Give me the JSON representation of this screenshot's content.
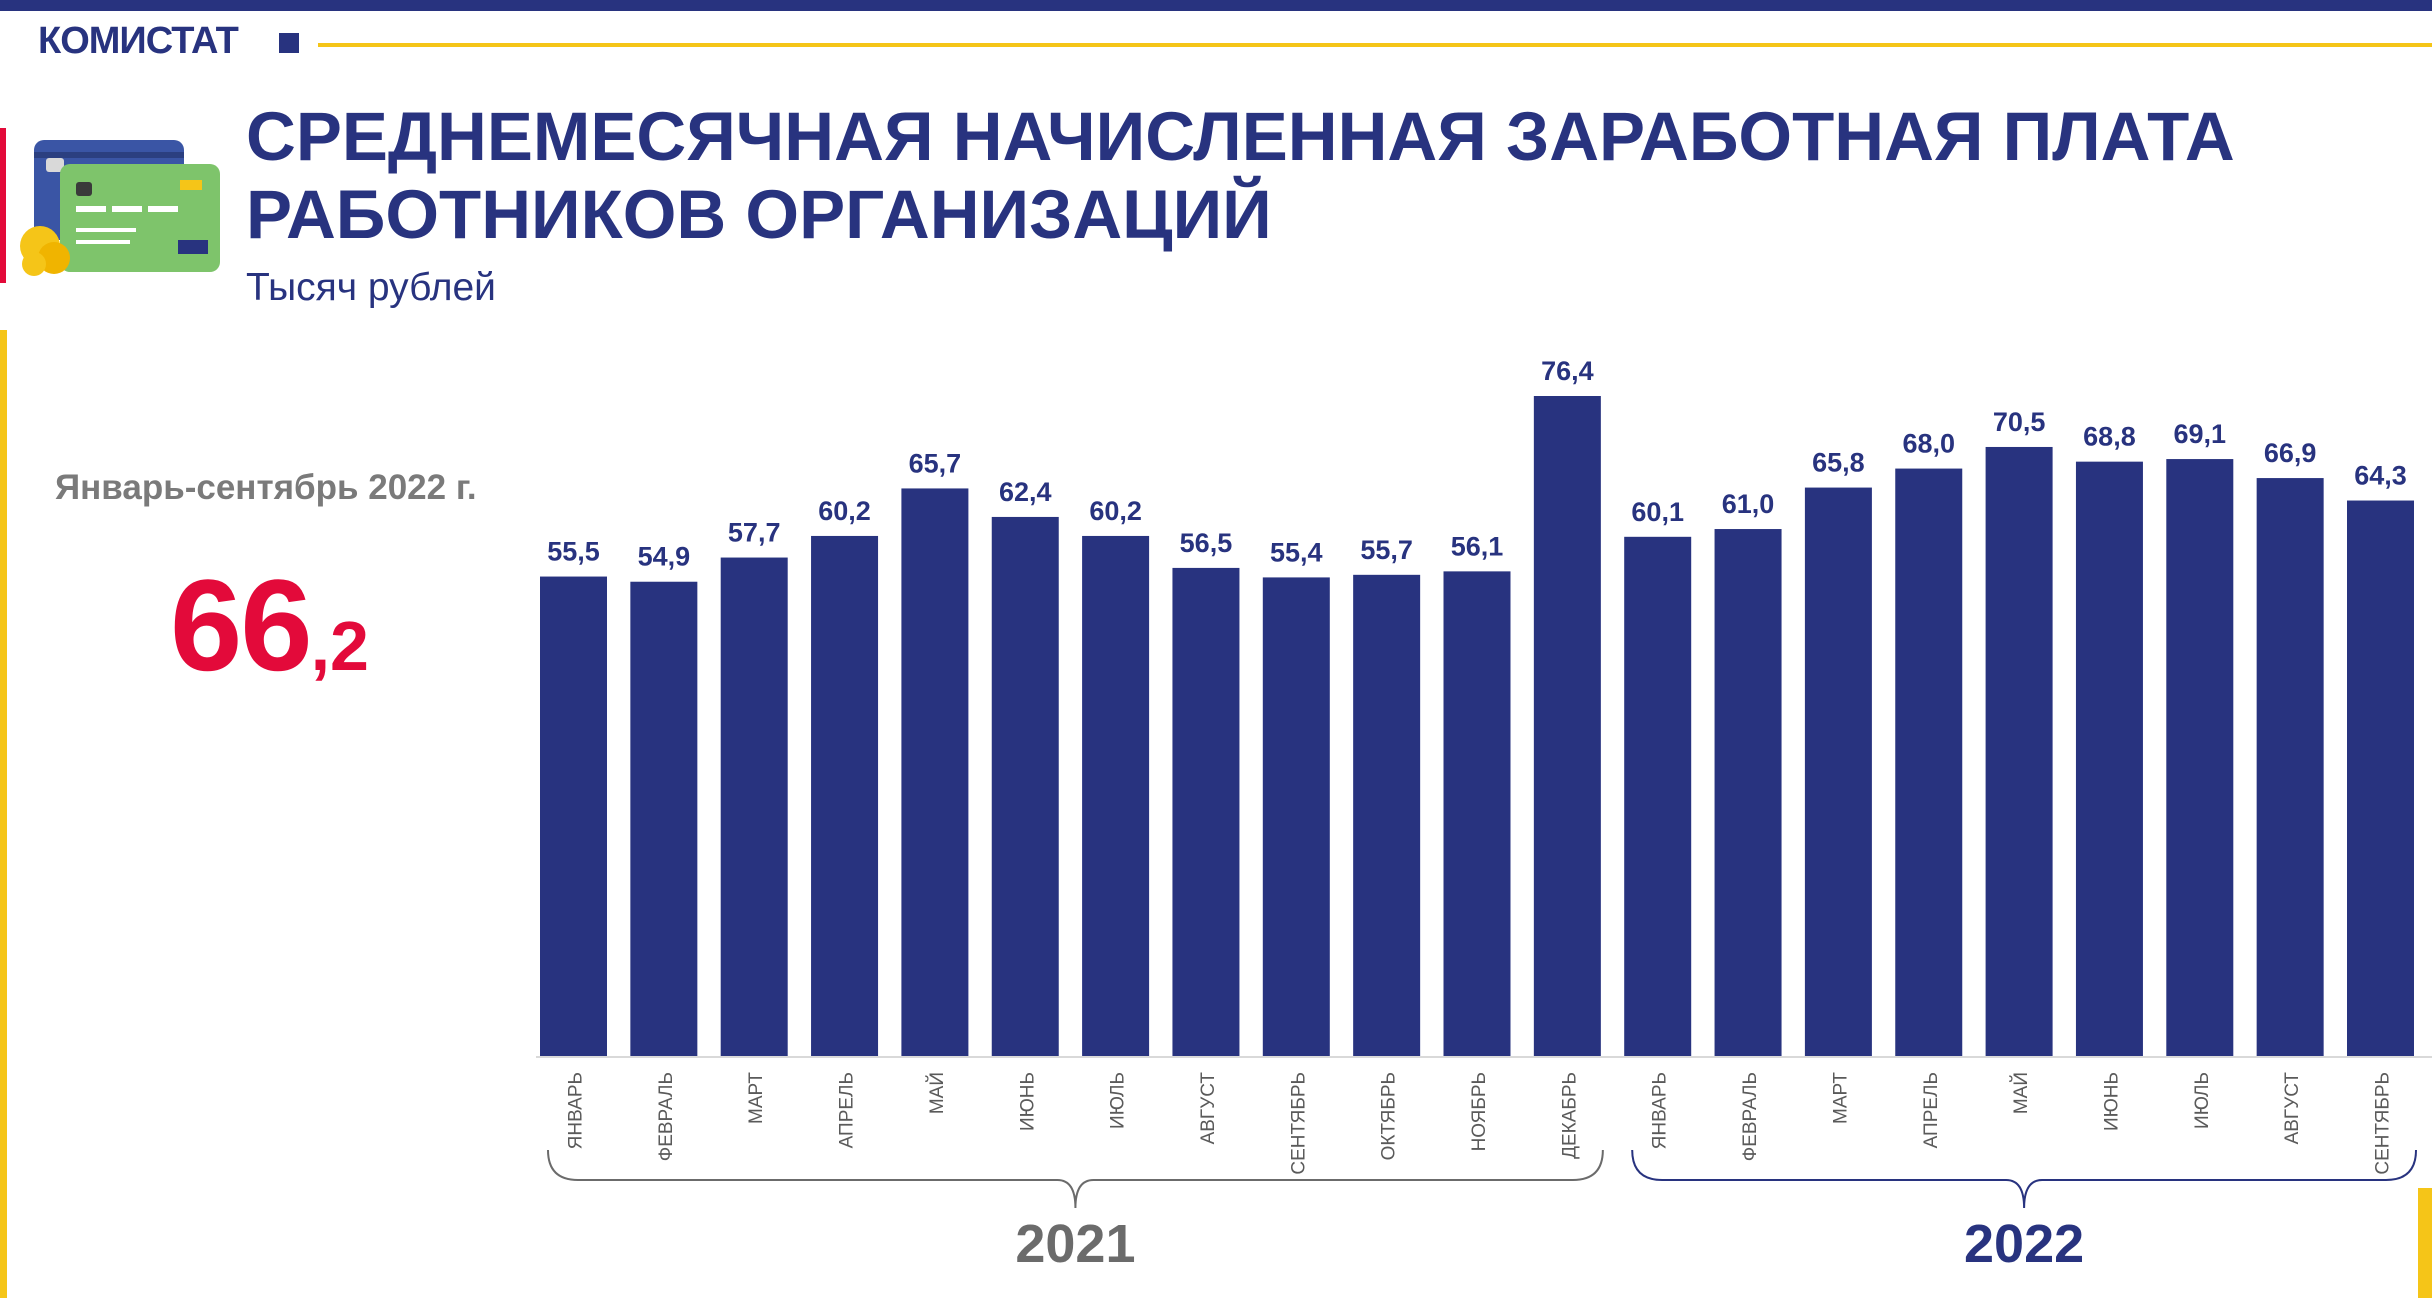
{
  "header": {
    "brand": "КОМИСТАТ",
    "title_line1": "СРЕДНЕМЕСЯЧНАЯ НАЧИСЛЕННАЯ ЗАРАБОТНАЯ ПЛАТА",
    "title_line2": "РАБОТНИКОВ ОРГАНИЗАЦИЙ",
    "subtitle": "Тысяч рублей"
  },
  "summary": {
    "period": "Январь-сентябрь 2022 г.",
    "value_int": "66",
    "value_frac": ",2"
  },
  "colors": {
    "brand": "#28337f",
    "accent_red": "#e30a3a",
    "accent_yellow": "#f5c518",
    "bar": "#28337f",
    "year_2021": "#6b6b6b",
    "year_2022": "#28337f"
  },
  "chart_data": {
    "type": "bar",
    "title": "СРЕДНЕМЕСЯЧНАЯ НАЧИСЛЕННАЯ ЗАРАБОТНАЯ ПЛАТА РАБОТНИКОВ ОРГАНИЗАЦИЙ",
    "ylabel": "Тысяч рублей",
    "ylim": [
      0,
      76.4
    ],
    "grid": false,
    "legend": "none",
    "categories": [
      "ЯНВАРЬ",
      "ФЕВРАЛЬ",
      "МАРТ",
      "АПРЕЛЬ",
      "МАЙ",
      "ИЮНЬ",
      "ИЮЛЬ",
      "АВГУСТ",
      "СЕНТЯБРЬ",
      "ОКТЯБРЬ",
      "НОЯБРЬ",
      "ДЕКАБРЬ",
      "ЯНВАРЬ",
      "ФЕВРАЛЬ",
      "МАРТ",
      "АПРЕЛЬ",
      "МАЙ",
      "ИЮНЬ",
      "ИЮЛЬ",
      "АВГУСТ",
      "СЕНТЯБРЬ"
    ],
    "values": [
      55.5,
      54.9,
      57.7,
      60.2,
      65.7,
      62.4,
      60.2,
      56.5,
      55.4,
      55.7,
      56.1,
      76.4,
      60.1,
      61.0,
      65.8,
      68.0,
      70.5,
      68.8,
      69.1,
      66.9,
      64.3
    ],
    "data_labels": [
      "55,5",
      "54,9",
      "57,7",
      "60,2",
      "65,7",
      "62,4",
      "60,2",
      "56,5",
      "55,4",
      "55,7",
      "56,1",
      "76,4",
      "60,1",
      "61,0",
      "65,8",
      "68,0",
      "70,5",
      "68,8",
      "69,1",
      "66,9",
      "64,3"
    ],
    "groups": [
      {
        "label": "2021",
        "count": 12
      },
      {
        "label": "2022",
        "count": 9
      }
    ]
  }
}
